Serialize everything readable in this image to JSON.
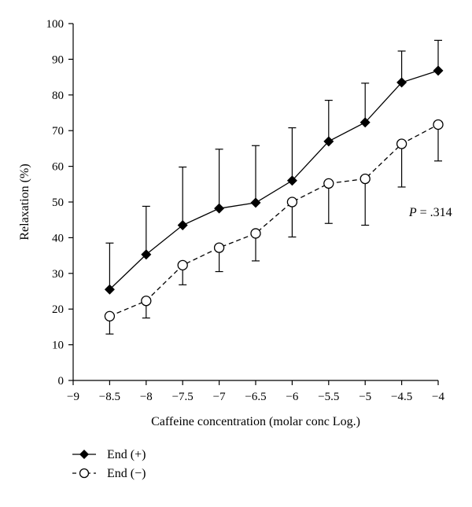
{
  "chart_data": {
    "type": "line",
    "xlabel": "Caffeine concentration (molar conc Log.)",
    "ylabel": "Relaxation (%)",
    "xlim": [
      -9,
      -4
    ],
    "ylim": [
      0,
      100
    ],
    "x_ticks": [
      -9,
      -8.5,
      -8,
      -7.5,
      -7,
      -6.5,
      -6,
      -5.5,
      -5,
      -4.5,
      -4
    ],
    "y_ticks": [
      0,
      10,
      20,
      30,
      40,
      50,
      60,
      70,
      80,
      90,
      100
    ],
    "x": [
      -8.5,
      -8,
      -7.5,
      -7,
      -6.5,
      -6,
      -5.5,
      -5,
      -4.5,
      -4
    ],
    "series": [
      {
        "name": "End (+)",
        "marker": "filled-diamond",
        "line_style": "solid",
        "values": [
          25.5,
          35.3,
          43.5,
          48.2,
          49.8,
          56.0,
          67.0,
          72.3,
          83.5,
          86.8
        ],
        "error_upper": [
          38.5,
          48.8,
          59.8,
          64.8,
          65.8,
          70.8,
          78.5,
          83.3,
          92.3,
          95.3
        ],
        "error_direction": "up"
      },
      {
        "name": "End (−)",
        "marker": "open-circle",
        "line_style": "dashed",
        "values": [
          18.0,
          22.3,
          32.3,
          37.2,
          41.2,
          50.0,
          55.2,
          56.5,
          66.3,
          71.7
        ],
        "error_lower": [
          13.0,
          17.5,
          26.8,
          30.5,
          33.5,
          40.2,
          44.0,
          43.5,
          54.2,
          61.5
        ],
        "error_direction": "down"
      }
    ],
    "annotation": {
      "label_italic": "P",
      "text": " = .314",
      "x": -4.4,
      "y": 46
    },
    "legend_position": "bottom-left",
    "grid": false
  }
}
